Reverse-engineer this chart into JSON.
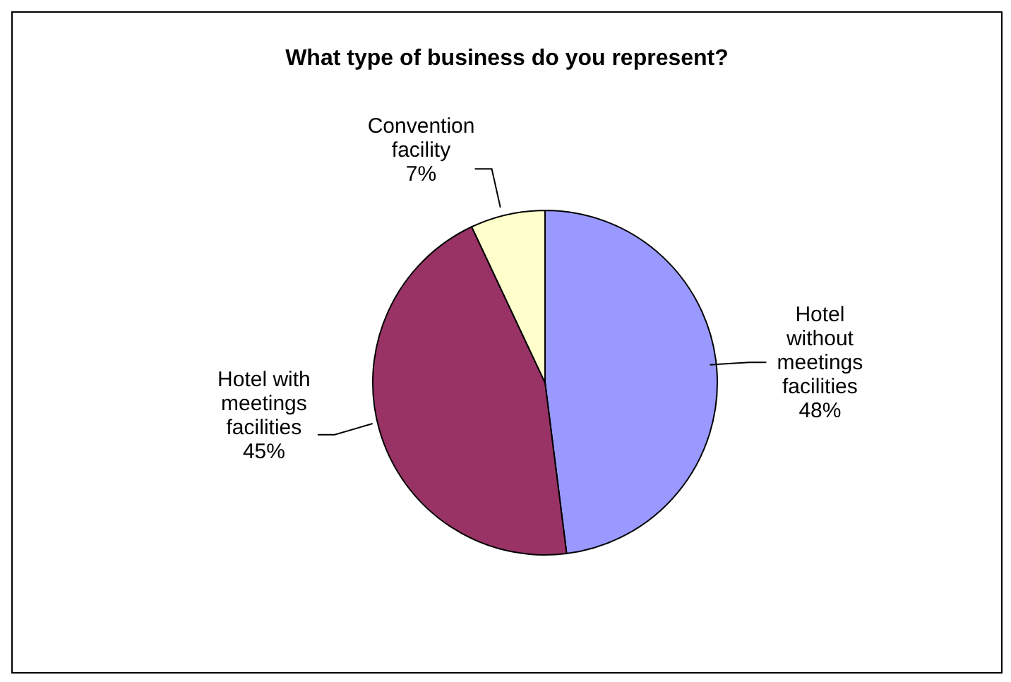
{
  "chart_data": {
    "type": "pie",
    "title": "What type of business do you represent?",
    "categories": [
      "Hotel without meetings facilities",
      "Hotel with meetings facilities",
      "Convention facility"
    ],
    "values": [
      48,
      45,
      7
    ],
    "colors": [
      "#9999ff",
      "#993366",
      "#ffffcc"
    ],
    "value_labels": [
      "48%",
      "45%",
      "7%"
    ]
  }
}
